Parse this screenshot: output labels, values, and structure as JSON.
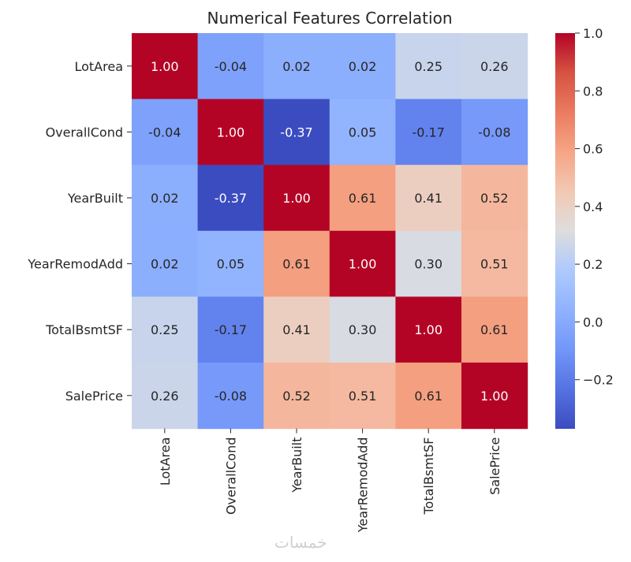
{
  "chart_data": {
    "type": "heatmap",
    "title": "Numerical Features Correlation",
    "rows": [
      "LotArea",
      "OverallCond",
      "YearBuilt",
      "YearRemodAdd",
      "TotalBsmtSF",
      "SalePrice"
    ],
    "cols": [
      "LotArea",
      "OverallCond",
      "YearBuilt",
      "YearRemodAdd",
      "TotalBsmtSF",
      "SalePrice"
    ],
    "values": [
      [
        1.0,
        -0.04,
        0.02,
        0.02,
        0.25,
        0.26
      ],
      [
        -0.04,
        1.0,
        -0.37,
        0.05,
        -0.17,
        -0.08
      ],
      [
        0.02,
        -0.37,
        1.0,
        0.61,
        0.41,
        0.52
      ],
      [
        0.02,
        0.05,
        0.61,
        1.0,
        0.3,
        0.51
      ],
      [
        0.25,
        -0.17,
        0.41,
        0.3,
        1.0,
        0.61
      ],
      [
        0.26,
        -0.08,
        0.52,
        0.51,
        0.61,
        1.0
      ]
    ],
    "colormap": "coolwarm",
    "vmin": -0.37,
    "vmax": 1.0,
    "colorbar": {
      "ticks": [
        -0.2,
        0.0,
        0.2,
        0.4,
        0.6,
        0.8,
        1.0
      ],
      "tick_labels": [
        "−0.2",
        "0.0",
        "0.2",
        "0.4",
        "0.6",
        "0.8",
        "1.0"
      ]
    },
    "annotation_format": "0.00"
  },
  "watermark": "خمسات"
}
